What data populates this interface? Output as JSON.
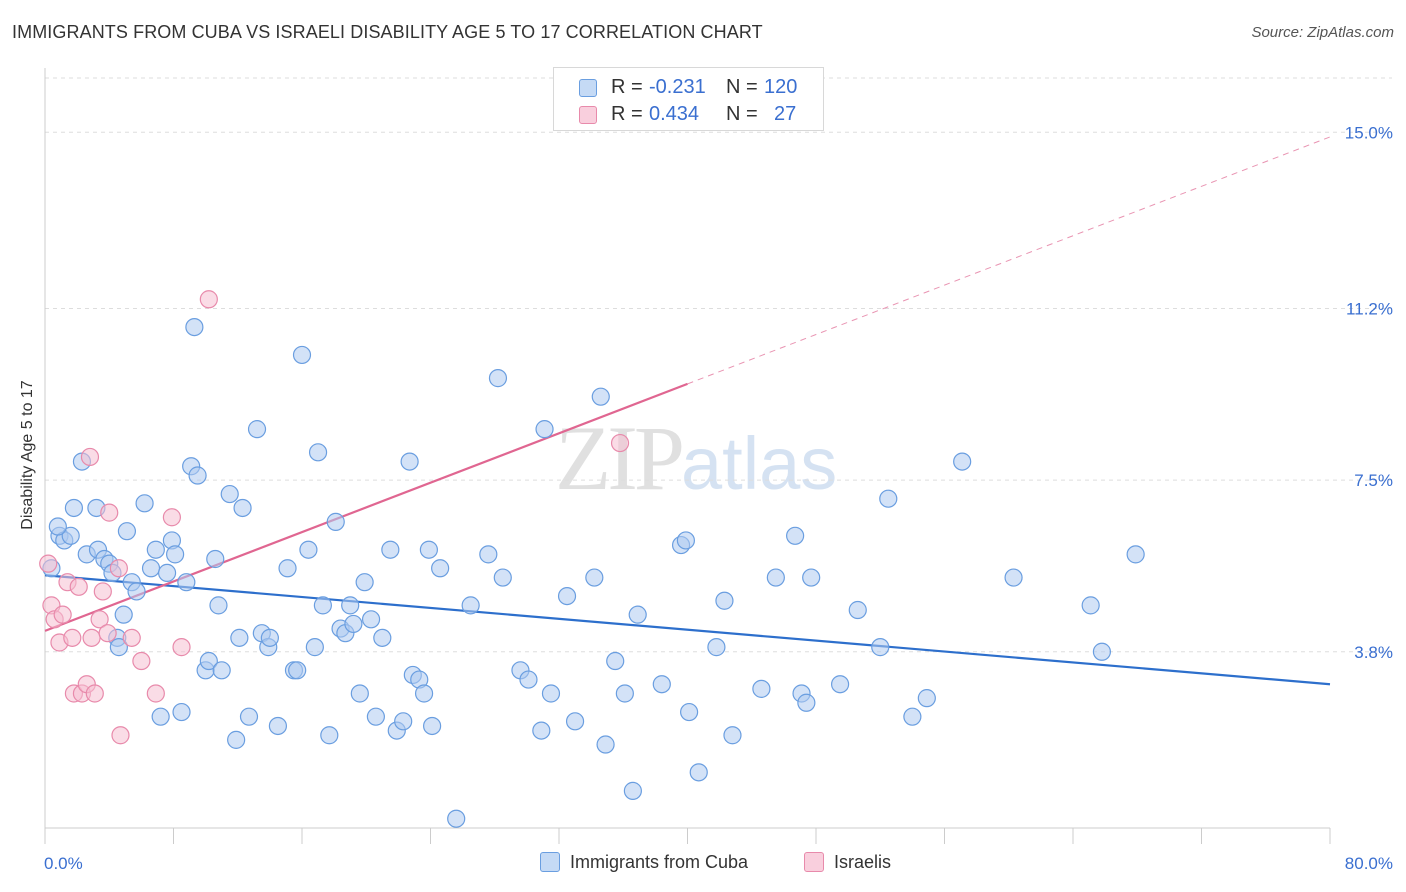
{
  "header": {
    "title": "IMMIGRANTS FROM CUBA VS ISRAELI DISABILITY AGE 5 TO 17 CORRELATION CHART",
    "source": "Source: ZipAtlas.com"
  },
  "watermark": {
    "zip": "ZIP",
    "atlas": "atlas"
  },
  "legend": {
    "rows": [
      {
        "r_label": "R =",
        "r_value": "-0.231",
        "n_label": "N =",
        "n_value": "120"
      },
      {
        "r_label": "R =",
        "r_value": "0.434",
        "n_label": "N =",
        "n_value": "27"
      }
    ]
  },
  "bottom_legend": {
    "cuba": "Immigrants from Cuba",
    "israelis": "Israelis"
  },
  "colors": {
    "cuba_fill": "#aecbf0",
    "cuba_stroke": "#6a9ee0",
    "cuba_line": "#2d6fcc",
    "israeli_fill": "#f6bfd1",
    "israeli_stroke": "#e88aab",
    "israeli_line": "#e06691",
    "grid": "#dddddd",
    "tick_label": "#3a6fd0"
  },
  "chart_data": {
    "type": "scatter",
    "title": "IMMIGRANTS FROM CUBA VS ISRAELI DISABILITY AGE 5 TO 17 CORRELATION CHART",
    "xlabel": "",
    "ylabel": "Disability Age 5 to 17",
    "xlim": [
      0,
      80
    ],
    "ylim": [
      0,
      16.3
    ],
    "x_tick_labels": [
      "0.0%",
      "80.0%"
    ],
    "y_ticks": [
      3.8,
      7.5,
      11.2,
      15.0
    ],
    "y_tick_labels": [
      "3.8%",
      "7.5%",
      "11.2%",
      "15.0%"
    ],
    "grid": "horizontal dashed",
    "legend_placement": "top-center",
    "series": [
      {
        "name": "Immigrants from Cuba",
        "r": -0.231,
        "n": 120,
        "trend": {
          "x": [
            0,
            80
          ],
          "y": [
            5.45,
            3.1
          ],
          "solid_to": 80
        },
        "points": [
          [
            0.4,
            5.6
          ],
          [
            0.9,
            6.3
          ],
          [
            1.2,
            6.2
          ],
          [
            1.6,
            6.3
          ],
          [
            2.3,
            7.9
          ],
          [
            1.8,
            6.9
          ],
          [
            0.8,
            6.5
          ],
          [
            2.6,
            5.9
          ],
          [
            3.2,
            6.9
          ],
          [
            3.3,
            6.0
          ],
          [
            3.7,
            5.8
          ],
          [
            4.0,
            5.7
          ],
          [
            4.2,
            5.5
          ],
          [
            4.5,
            4.1
          ],
          [
            4.6,
            3.9
          ],
          [
            4.9,
            4.6
          ],
          [
            5.1,
            6.4
          ],
          [
            5.4,
            5.3
          ],
          [
            5.7,
            5.1
          ],
          [
            6.2,
            7.0
          ],
          [
            6.6,
            5.6
          ],
          [
            6.9,
            6.0
          ],
          [
            7.2,
            2.4
          ],
          [
            7.6,
            5.5
          ],
          [
            7.9,
            6.2
          ],
          [
            8.1,
            5.9
          ],
          [
            8.5,
            2.5
          ],
          [
            8.8,
            5.3
          ],
          [
            9.1,
            7.8
          ],
          [
            9.5,
            7.6
          ],
          [
            9.3,
            10.8
          ],
          [
            10.0,
            3.4
          ],
          [
            10.2,
            3.6
          ],
          [
            10.6,
            5.8
          ],
          [
            10.8,
            4.8
          ],
          [
            11.0,
            3.4
          ],
          [
            11.5,
            7.2
          ],
          [
            11.9,
            1.9
          ],
          [
            12.1,
            4.1
          ],
          [
            12.3,
            6.9
          ],
          [
            12.7,
            2.4
          ],
          [
            13.2,
            8.6
          ],
          [
            13.5,
            4.2
          ],
          [
            13.9,
            3.9
          ],
          [
            14.0,
            4.1
          ],
          [
            14.5,
            2.2
          ],
          [
            15.1,
            5.6
          ],
          [
            15.5,
            3.4
          ],
          [
            15.7,
            3.4
          ],
          [
            16.0,
            10.2
          ],
          [
            16.4,
            6.0
          ],
          [
            16.8,
            3.9
          ],
          [
            17.0,
            8.1
          ],
          [
            17.3,
            4.8
          ],
          [
            17.7,
            2.0
          ],
          [
            18.1,
            6.6
          ],
          [
            18.4,
            4.3
          ],
          [
            18.7,
            4.2
          ],
          [
            19.0,
            4.8
          ],
          [
            19.2,
            4.4
          ],
          [
            19.6,
            2.9
          ],
          [
            19.9,
            5.3
          ],
          [
            20.3,
            4.5
          ],
          [
            20.6,
            2.4
          ],
          [
            21.0,
            4.1
          ],
          [
            21.5,
            6.0
          ],
          [
            21.9,
            2.1
          ],
          [
            22.3,
            2.3
          ],
          [
            22.7,
            7.9
          ],
          [
            22.9,
            3.3
          ],
          [
            23.3,
            3.2
          ],
          [
            23.6,
            2.9
          ],
          [
            23.9,
            6.0
          ],
          [
            24.1,
            2.2
          ],
          [
            24.6,
            5.6
          ],
          [
            25.6,
            0.2
          ],
          [
            26.5,
            4.8
          ],
          [
            27.6,
            5.9
          ],
          [
            28.2,
            9.7
          ],
          [
            28.5,
            5.4
          ],
          [
            29.6,
            3.4
          ],
          [
            30.1,
            3.2
          ],
          [
            30.9,
            2.1
          ],
          [
            31.1,
            8.6
          ],
          [
            31.5,
            2.9
          ],
          [
            32.5,
            5.0
          ],
          [
            33.0,
            2.3
          ],
          [
            34.2,
            5.4
          ],
          [
            34.6,
            9.3
          ],
          [
            34.9,
            1.8
          ],
          [
            35.5,
            3.6
          ],
          [
            36.1,
            2.9
          ],
          [
            36.6,
            0.8
          ],
          [
            36.9,
            4.6
          ],
          [
            38.4,
            3.1
          ],
          [
            39.6,
            6.1
          ],
          [
            39.9,
            6.2
          ],
          [
            40.1,
            2.5
          ],
          [
            40.7,
            1.2
          ],
          [
            41.8,
            3.9
          ],
          [
            42.3,
            4.9
          ],
          [
            42.8,
            2.0
          ],
          [
            44.6,
            3.0
          ],
          [
            45.5,
            5.4
          ],
          [
            46.7,
            6.3
          ],
          [
            47.1,
            2.9
          ],
          [
            47.4,
            2.7
          ],
          [
            47.7,
            5.4
          ],
          [
            49.5,
            3.1
          ],
          [
            50.6,
            4.7
          ],
          [
            52.0,
            3.9
          ],
          [
            52.5,
            7.1
          ],
          [
            54.0,
            2.4
          ],
          [
            54.9,
            2.8
          ],
          [
            57.1,
            7.9
          ],
          [
            60.3,
            5.4
          ],
          [
            65.1,
            4.8
          ],
          [
            65.8,
            3.8
          ],
          [
            67.9,
            5.9
          ]
        ]
      },
      {
        "name": "Israelis",
        "r": 0.434,
        "n": 27,
        "trend": {
          "x": [
            0,
            80
          ],
          "y": [
            4.25,
            14.9
          ],
          "solid_to": 40
        },
        "points": [
          [
            0.2,
            5.7
          ],
          [
            0.4,
            4.8
          ],
          [
            0.6,
            4.5
          ],
          [
            0.9,
            4.0
          ],
          [
            1.1,
            4.6
          ],
          [
            1.4,
            5.3
          ],
          [
            1.7,
            4.1
          ],
          [
            1.8,
            2.9
          ],
          [
            2.1,
            5.2
          ],
          [
            2.3,
            2.9
          ],
          [
            2.6,
            3.1
          ],
          [
            2.8,
            8.0
          ],
          [
            2.9,
            4.1
          ],
          [
            3.1,
            2.9
          ],
          [
            3.4,
            4.5
          ],
          [
            3.6,
            5.1
          ],
          [
            3.9,
            4.2
          ],
          [
            4.0,
            6.8
          ],
          [
            4.6,
            5.6
          ],
          [
            4.7,
            2.0
          ],
          [
            5.4,
            4.1
          ],
          [
            6.0,
            3.6
          ],
          [
            6.9,
            2.9
          ],
          [
            7.9,
            6.7
          ],
          [
            8.5,
            3.9
          ],
          [
            10.2,
            11.4
          ],
          [
            35.8,
            8.3
          ]
        ]
      }
    ]
  }
}
